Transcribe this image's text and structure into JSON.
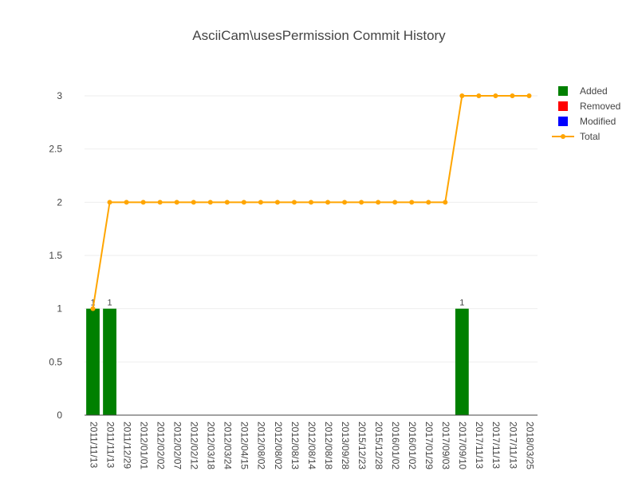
{
  "chart_data": {
    "type": "bar",
    "title": "AsciiCam\\usesPermission Commit History",
    "xlabel": "",
    "ylabel": "",
    "ylim": [
      0,
      3.3
    ],
    "yticks": [
      "0",
      "0.5",
      "1",
      "1.5",
      "2",
      "2.5",
      "3"
    ],
    "grid": true,
    "legend_position": "top-right",
    "categories": [
      "2011/11/13",
      "2011/11/13",
      "2011/12/29",
      "2012/01/01",
      "2012/02/02",
      "2012/02/07",
      "2012/02/12",
      "2012/03/18",
      "2012/03/24",
      "2012/04/15",
      "2012/08/02",
      "2012/08/02",
      "2012/08/13",
      "2012/08/14",
      "2012/08/18",
      "2013/09/28",
      "2015/12/23",
      "2015/12/28",
      "2016/01/02",
      "2016/01/02",
      "2017/01/29",
      "2017/09/03",
      "2017/09/10",
      "2017/11/13",
      "2017/11/13",
      "2017/11/13",
      "2018/03/25"
    ],
    "series": [
      {
        "name": "Added",
        "type": "bar",
        "color": "#008000",
        "values": [
          1,
          1,
          0,
          0,
          0,
          0,
          0,
          0,
          0,
          0,
          0,
          0,
          0,
          0,
          0,
          0,
          0,
          0,
          0,
          0,
          0,
          0,
          1,
          0,
          0,
          0,
          0
        ],
        "labels": [
          "1",
          "1",
          "",
          "",
          "",
          "",
          "",
          "",
          "",
          "",
          "",
          "",
          "",
          "",
          "",
          "",
          "",
          "",
          "",
          "",
          "",
          "",
          "1",
          "",
          "",
          "",
          ""
        ]
      },
      {
        "name": "Removed",
        "type": "bar",
        "color": "#ff0000",
        "values": [
          0,
          0,
          0,
          0,
          0,
          0,
          0,
          0,
          0,
          0,
          0,
          0,
          0,
          0,
          0,
          0,
          0,
          0,
          0,
          0,
          0,
          0,
          0,
          0,
          0,
          0,
          0
        ]
      },
      {
        "name": "Modified",
        "type": "bar",
        "color": "#0000ff",
        "values": [
          0,
          0,
          0,
          0,
          0,
          0,
          0,
          0,
          0,
          0,
          0,
          0,
          0,
          0,
          0,
          0,
          0,
          0,
          0,
          0,
          0,
          0,
          0,
          0,
          0,
          0,
          0
        ]
      },
      {
        "name": "Total",
        "type": "line",
        "color": "#ffa500",
        "values": [
          1,
          2,
          2,
          2,
          2,
          2,
          2,
          2,
          2,
          2,
          2,
          2,
          2,
          2,
          2,
          2,
          2,
          2,
          2,
          2,
          2,
          2,
          3,
          3,
          3,
          3,
          3
        ]
      }
    ]
  }
}
